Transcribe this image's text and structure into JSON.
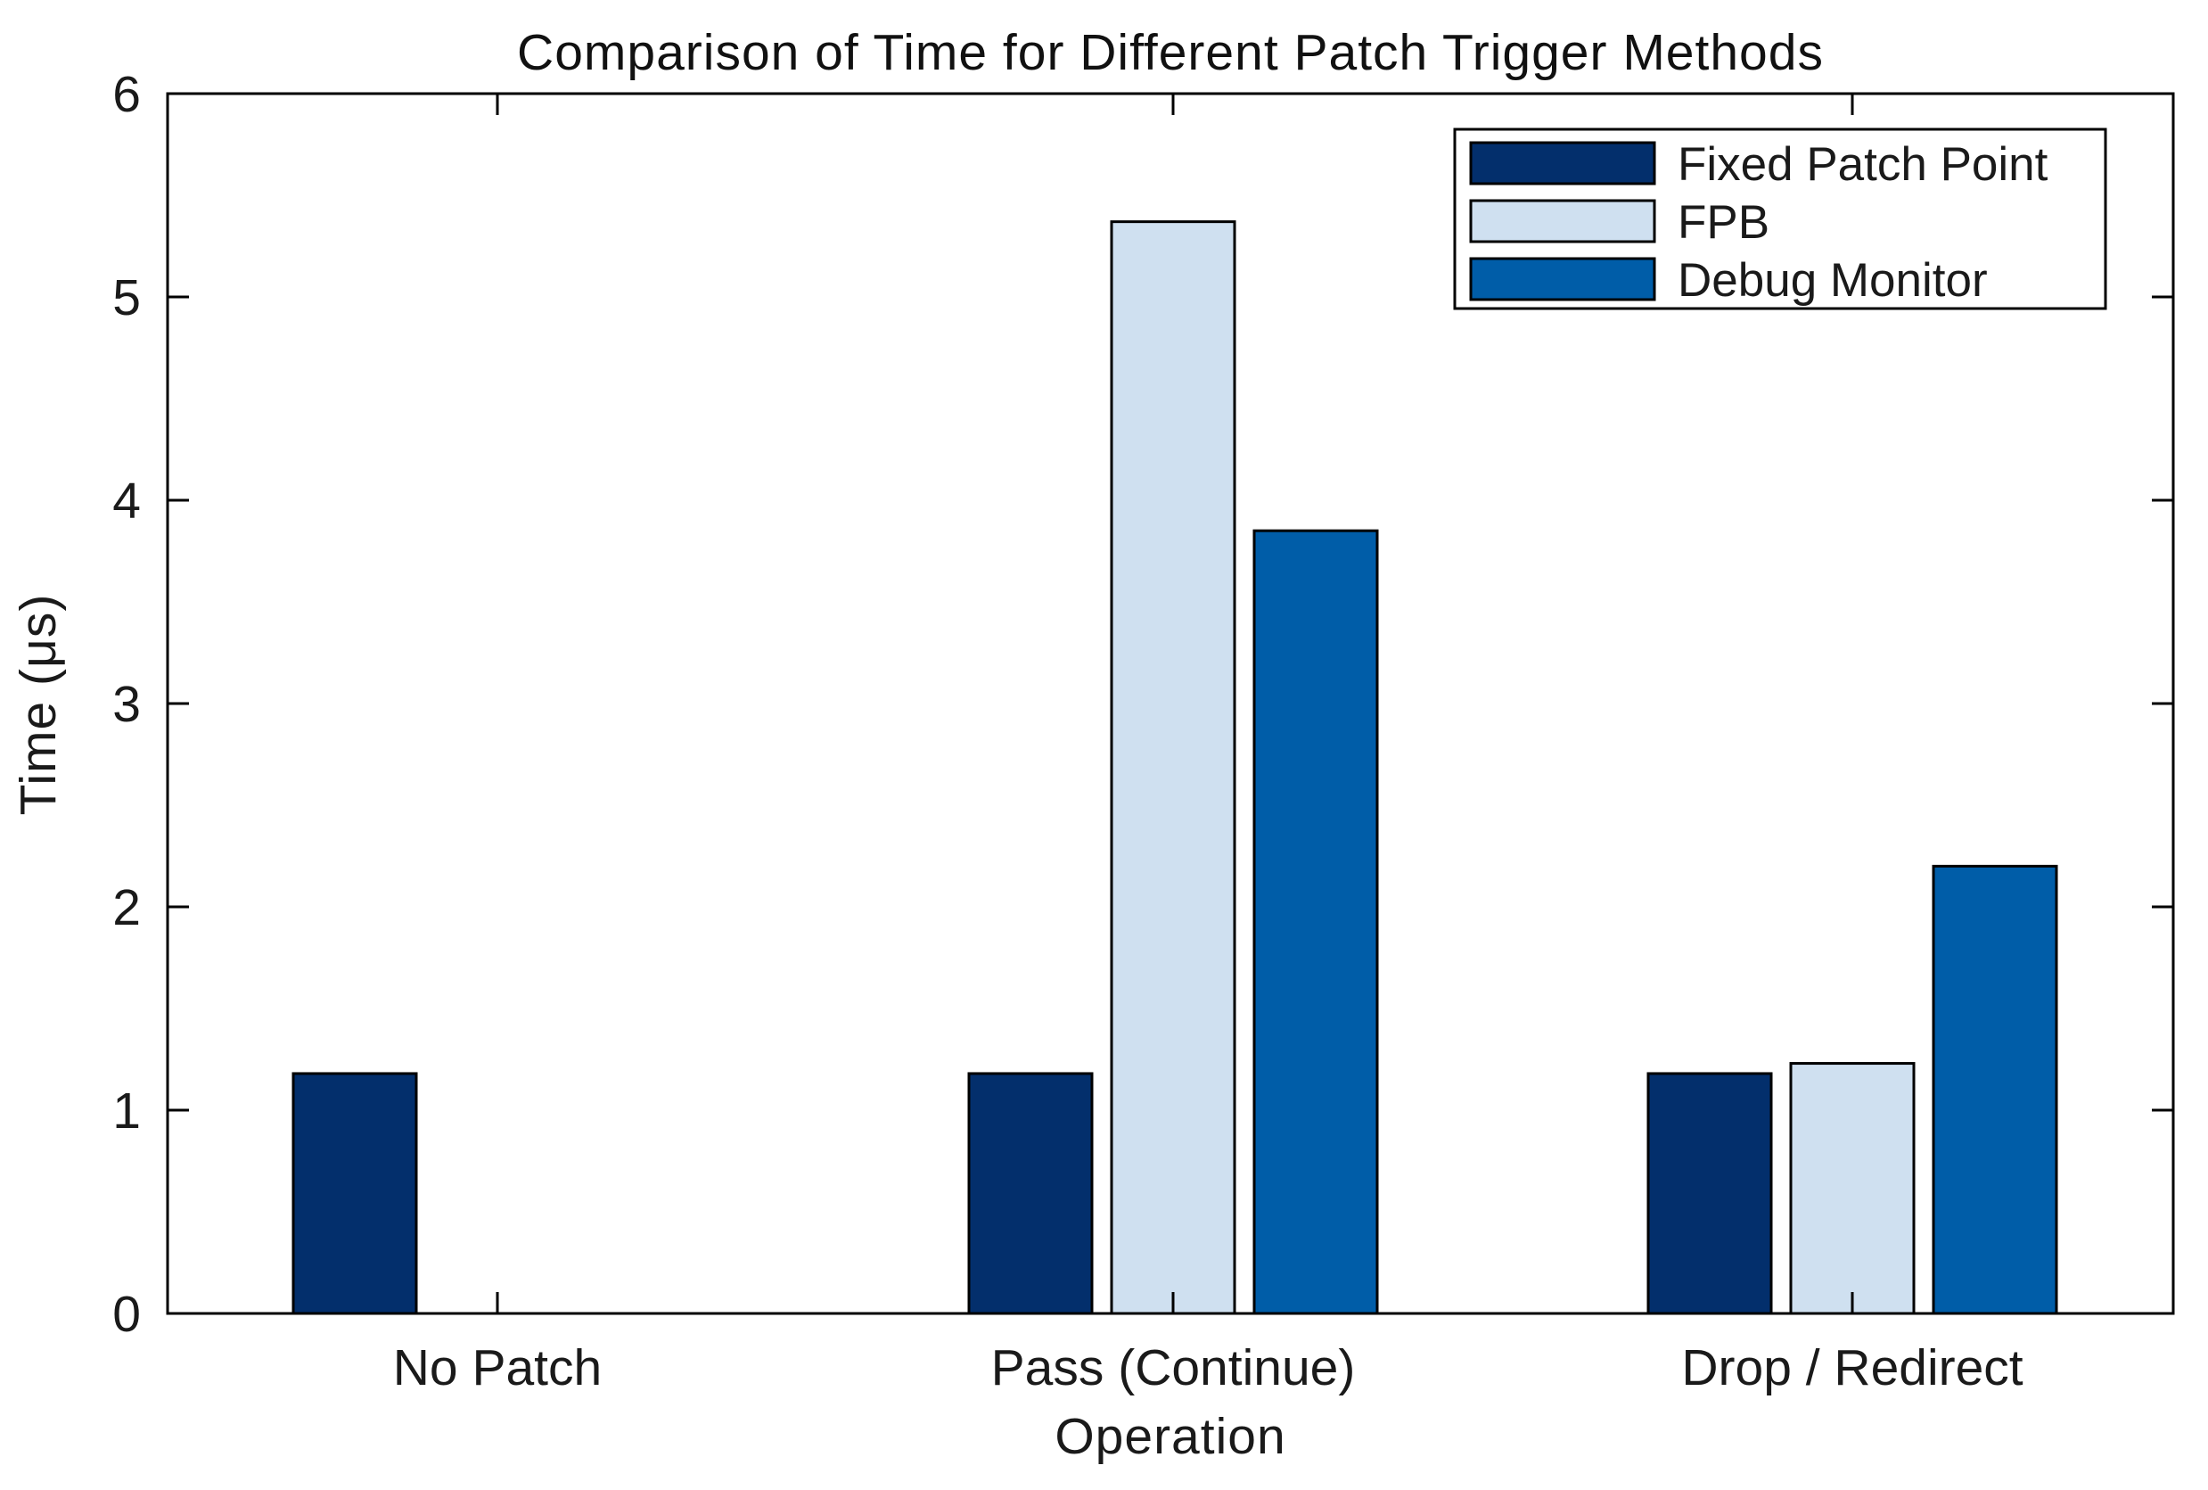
{
  "chart_data": {
    "type": "bar",
    "title": "Comparison of Time for Different Patch Trigger Methods",
    "xlabel": "Operation",
    "ylabel": "Time (μs)",
    "categories": [
      "No Patch",
      "Pass (Continue)",
      "Drop / Redirect"
    ],
    "series": [
      {
        "name": "Fixed Patch Point",
        "color": "#032F6C",
        "values": [
          1.18,
          1.18,
          1.18
        ]
      },
      {
        "name": "FPB",
        "color": "#CFE0F0",
        "values": [
          0,
          5.37,
          1.23
        ]
      },
      {
        "name": "Debug Monitor",
        "color": "#005DA8",
        "values": [
          0,
          3.85,
          2.2
        ]
      }
    ],
    "ylim": [
      0,
      6
    ],
    "yticks": [
      0,
      1,
      2,
      3,
      4,
      5,
      6
    ],
    "grid": false,
    "legend_position": "top-right",
    "bar_edge_color": "#000000",
    "axis_color": "#000000"
  }
}
